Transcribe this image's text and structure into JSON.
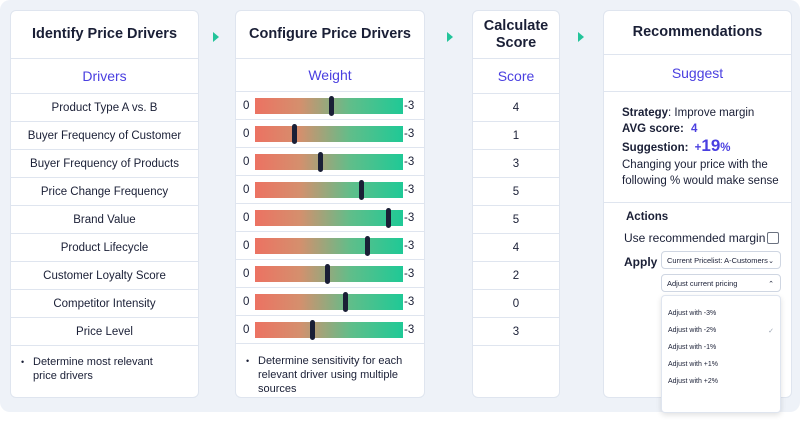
{
  "identify": {
    "title": "Identify Price Drivers",
    "sub": "Drivers",
    "drivers": [
      "Product Type A vs. B",
      "Buyer Frequency of Customer",
      "Buyer Frequency of Products",
      "Price Change Frequency",
      "Brand Value",
      "Product Lifecycle",
      "Customer Loyalty Score",
      "Competitor Intensity",
      "Price Level"
    ],
    "note_line1": "Determine most relevant",
    "note_line2": "price drivers"
  },
  "configure": {
    "title": "Configure Price Drivers",
    "sub": "Weight",
    "min_label": "0",
    "max_label": "-3",
    "weights": [
      0.52,
      0.27,
      0.44,
      0.72,
      0.9,
      0.76,
      0.49,
      0.61,
      0.39
    ],
    "note_line1": "Determine sensitivity for each",
    "note_line2": "relevant driver using multiple",
    "note_line3": "sources"
  },
  "calculate": {
    "title_line1": "Calculate",
    "title_line2": "Score",
    "sub": "Score",
    "scores": [
      "4",
      "1",
      "3",
      "5",
      "5",
      "4",
      "2",
      "0",
      "3"
    ]
  },
  "recommend": {
    "title": "Recommendations",
    "sub": "Suggest",
    "strategy_label": "Strategy",
    "strategy_value": ": Improve margin",
    "avg_label": "AVG score:",
    "avg_value": "4",
    "suggestion_label": "Suggestion:",
    "suggestion_sign": "+",
    "suggestion_number": "19",
    "suggestion_pct": "%",
    "desc_line1": "Changing your price with the",
    "desc_line2": "following % would make sense",
    "actions_label": "Actions",
    "use_margin_label": "Use recommended margin",
    "apply_label": "Apply",
    "pricelist_select": "Current Pricelist: A-Customers",
    "pricing_select": "Adjust current pricing",
    "options": [
      "Adjust with -3%",
      "Adjust with -2%",
      "Adjust with -1%",
      "Adjust with +1%",
      "Adjust with +2%"
    ],
    "selected_option_index": 1
  },
  "colors": {
    "accent": "#4a3fe0",
    "arrow": "#23c49a",
    "gradient_low": "#ec7262",
    "gradient_high": "#1fc996"
  }
}
